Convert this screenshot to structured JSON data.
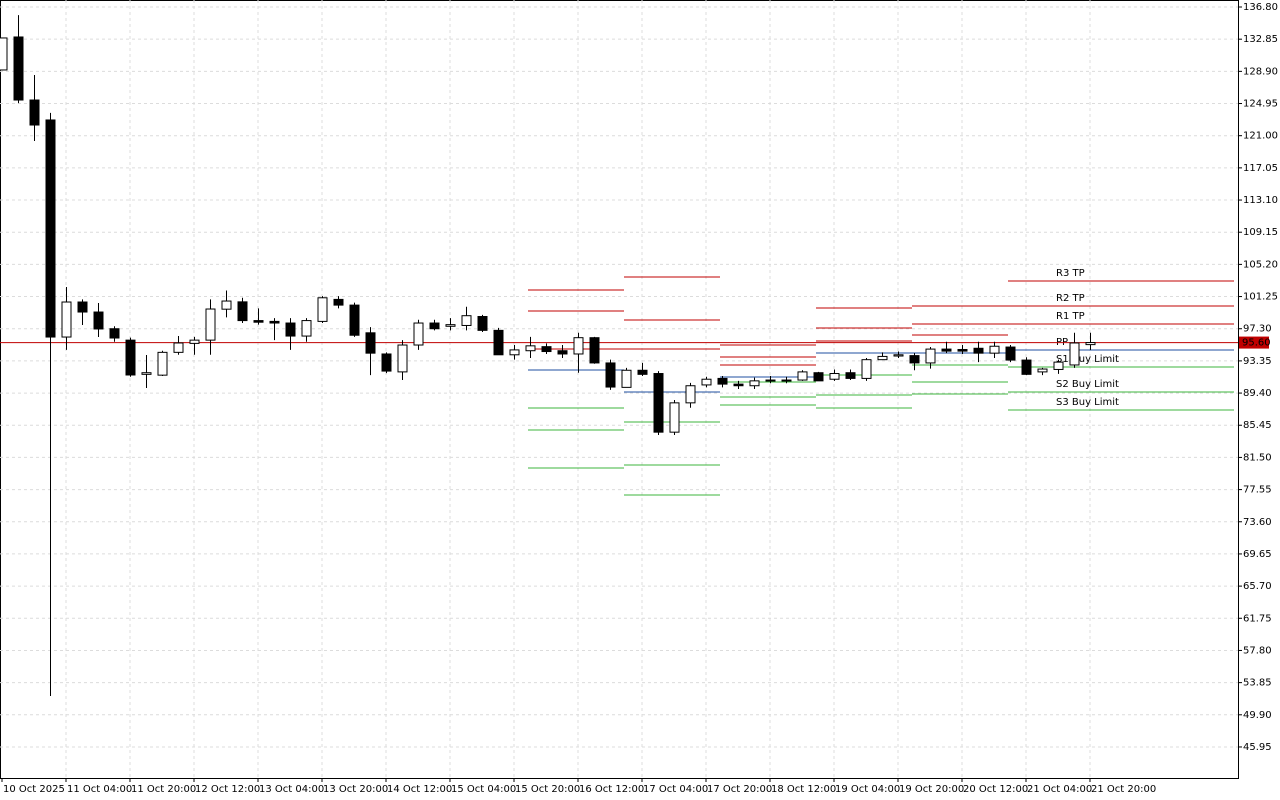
{
  "chart_data": {
    "type": "candlestick",
    "categories": [
      "10 Oct 2025",
      null,
      null,
      null,
      "11 Oct 04:00",
      null,
      null,
      null,
      "11 Oct 20:00",
      null,
      null,
      null,
      "12 Oct 12:00",
      null,
      null,
      null,
      "13 Oct 04:00",
      null,
      null,
      null,
      "13 Oct 20:00",
      null,
      null,
      null,
      "14 Oct 12:00",
      null,
      null,
      null,
      "15 Oct 04:00",
      null,
      null,
      null,
      "15 Oct 20:00",
      null,
      null,
      null,
      "16 Oct 12:00",
      null,
      null,
      null,
      "17 Oct 04:00",
      null,
      null,
      null,
      "17 Oct 20:00",
      null,
      null,
      null,
      "18 Oct 12:00",
      null,
      null,
      null,
      "19 Oct 04:00",
      null,
      null,
      null,
      "19 Oct 20:00",
      null,
      null,
      null,
      "20 Oct 12:00",
      null,
      null,
      null,
      "21 Oct 04:00",
      null,
      null,
      null,
      "21 Oct 20:00"
    ],
    "open": [
      129.07,
      133.12,
      125.38,
      122.93,
      96.28,
      100.58,
      99.35,
      97.3,
      95.9,
      91.7,
      91.6,
      94.4,
      95.5,
      95.9,
      99.7,
      100.6,
      98.3,
      98.2,
      98.0,
      96.4,
      98.2,
      100.9,
      100.2,
      96.8,
      94.2,
      92.0,
      95.3,
      98.0,
      97.6,
      97.7,
      98.8,
      97.1,
      94.1,
      94.6,
      95.1,
      94.6,
      94.2,
      96.2,
      93.1,
      90.1,
      92.2,
      91.8,
      84.6,
      88.2,
      90.4,
      91.2,
      90.5,
      90.3,
      90.9,
      91.0,
      91.0,
      91.9,
      91.1,
      91.9,
      91.2,
      93.5,
      93.95,
      94.0,
      93.1,
      94.8,
      94.75,
      94.9,
      94.3,
      95.05,
      93.45,
      92.0,
      92.3,
      92.85,
      95.35
    ],
    "high": [
      133.0,
      135.8,
      128.45,
      123.8,
      102.42,
      100.9,
      100.46,
      97.6,
      96.2,
      94.08,
      94.6,
      96.4,
      96.3,
      100.9,
      102.0,
      101.1,
      99.8,
      98.6,
      98.6,
      98.6,
      101.3,
      101.3,
      100.5,
      97.5,
      94.4,
      95.9,
      98.4,
      98.4,
      98.6,
      100.0,
      99.0,
      97.4,
      95.3,
      96.3,
      95.5,
      95.3,
      96.8,
      96.3,
      93.5,
      92.5,
      93.1,
      92.1,
      88.55,
      90.65,
      91.4,
      91.5,
      90.9,
      91.3,
      91.5,
      91.4,
      92.2,
      92.0,
      92.3,
      92.3,
      93.7,
      94.4,
      94.5,
      94.3,
      95.05,
      95.7,
      95.3,
      95.7,
      95.7,
      95.3,
      93.8,
      92.5,
      93.5,
      96.8,
      96.8
    ],
    "low": [
      129.0,
      125.0,
      120.35,
      52.2,
      94.7,
      97.76,
      96.28,
      95.7,
      91.4,
      90.02,
      91.5,
      94.1,
      94.1,
      94.1,
      98.7,
      98.0,
      97.8,
      95.9,
      94.7,
      95.7,
      98.0,
      99.8,
      96.3,
      91.6,
      91.85,
      91.0,
      94.7,
      97.1,
      97.1,
      97.1,
      96.9,
      94.1,
      93.5,
      93.7,
      94.2,
      93.7,
      91.9,
      93.0,
      89.8,
      90.1,
      91.5,
      84.25,
      84.25,
      87.6,
      90.1,
      90.1,
      89.9,
      89.9,
      90.6,
      90.6,
      90.9,
      90.9,
      90.9,
      91.0,
      90.9,
      93.5,
      93.7,
      92.2,
      92.4,
      94.3,
      94.2,
      93.2,
      93.7,
      93.2,
      91.6,
      91.6,
      91.75,
      92.5,
      94.7
    ],
    "close": [
      133.0,
      125.38,
      122.31,
      96.28,
      100.58,
      99.35,
      97.27,
      96.16,
      91.62,
      91.9,
      94.4,
      95.55,
      95.9,
      99.72,
      100.7,
      98.3,
      98.1,
      98.0,
      96.4,
      98.3,
      101.1,
      100.2,
      96.5,
      94.3,
      92.1,
      95.3,
      98.0,
      97.3,
      97.8,
      98.9,
      97.1,
      94.1,
      94.7,
      95.2,
      94.5,
      94.2,
      96.2,
      93.1,
      90.14,
      92.2,
      91.7,
      84.6,
      88.2,
      90.3,
      91.1,
      90.5,
      90.3,
      90.9,
      91.0,
      90.9,
      92.0,
      90.9,
      91.8,
      91.2,
      93.5,
      93.9,
      94.1,
      93.1,
      94.8,
      94.55,
      94.55,
      94.3,
      95.15,
      93.45,
      91.7,
      92.35,
      93.2,
      95.55,
      95.6
    ],
    "up_color": "#ffffff",
    "down_color": "#000000",
    "last_price": {
      "value": 95.6,
      "label": "95.60"
    },
    "last_price_color": "#c00000",
    "ylim": [
      42.14,
      137.66
    ],
    "yticks": [
      {
        "value": 136.8,
        "label": "136.80"
      },
      132.85,
      {
        "value": 128.9,
        "label": "128.90"
      },
      124.95,
      {
        "value": 121,
        "label": "121.00"
      },
      117.05,
      {
        "value": 113.1,
        "label": "113.10"
      },
      109.15,
      {
        "value": 105.2,
        "label": "105.20"
      },
      101.25,
      {
        "value": 97.3,
        "label": "97.30"
      },
      93.35,
      {
        "value": 89.4,
        "label": "89.40"
      },
      85.45,
      {
        "value": 81.5,
        "label": "81.50"
      },
      77.55,
      {
        "value": 73.6,
        "label": "73.60"
      },
      69.65,
      {
        "value": 65.7,
        "label": "65.70"
      },
      61.75,
      {
        "value": 57.8,
        "label": "57.80"
      },
      53.85,
      {
        "value": 49.9,
        "label": "49.90"
      },
      45.95
    ],
    "grid": true,
    "level_labels": [
      "R3 TP",
      "R2 TP",
      "R1 TP",
      "PP",
      "S1 Buy Limit",
      "S2 Buy Limit",
      "S3 Buy Limit"
    ],
    "level_colors": [
      "#c00000",
      "#c00000",
      "#c00000",
      "#1f4fa0",
      "#3cb43c",
      "#3cb43c",
      "#3cb43c"
    ],
    "pivot_levels": [
      [
        102.05,
        99.48,
        94.81,
        92.23,
        87.57,
        84.87,
        80.2
      ],
      [
        103.65,
        98.37,
        94.81,
        89.53,
        85.85,
        80.57,
        76.89
      ],
      [
        95.3,
        93.83,
        92.85,
        91.37,
        90.76,
        88.92,
        87.93
      ],
      [
        99.84,
        97.39,
        95.79,
        94.32,
        91.62,
        89.16,
        87.57
      ],
      [
        100.09,
        97.88,
        96.53,
        94.32,
        92.85,
        90.76,
        89.29
      ],
      [
        103.16,
        100.09,
        97.88,
        94.69,
        92.6,
        89.53,
        87.32
      ]
    ]
  }
}
